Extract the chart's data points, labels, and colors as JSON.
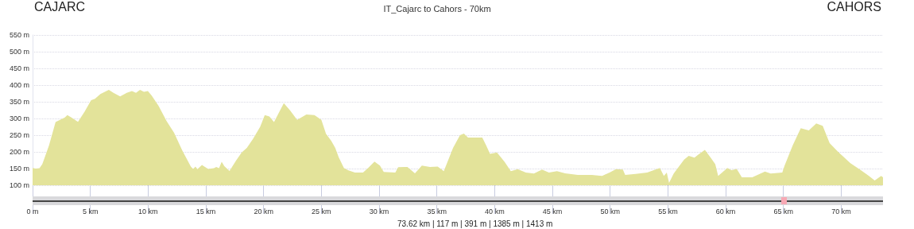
{
  "chart_data": {
    "type": "area",
    "title": "IT_Cajarc to Cahors - 70km",
    "annotations": [
      "CAJARC",
      "CAHORS",
      "73.62 km | 117 m | 391 m | 1385 m | 1413 m"
    ],
    "color": "#e3e39a",
    "x": [
      0,
      0.27,
      0.6,
      0.84,
      1.42,
      1.99,
      2.44,
      2.79,
      3.01,
      3.36,
      3.93,
      4.5,
      5.07,
      5.4,
      5.87,
      6.6,
      7.0,
      7.58,
      8.15,
      8.6,
      8.95,
      9.3,
      9.64,
      9.98,
      10.3,
      10.9,
      11.6,
      12.25,
      12.95,
      13.7,
      13.9,
      14.1,
      14.27,
      14.66,
      15.2,
      15.7,
      15.9,
      16.14,
      16.37,
      16.6,
      17.05,
      17.6,
      18.1,
      18.55,
      19.1,
      19.7,
      20.1,
      20.5,
      20.9,
      21.75,
      22.3,
      22.9,
      23.7,
      24.4,
      25,
      25.4,
      25.86,
      26.2,
      26.5,
      26.95,
      27.3,
      27.9,
      28.6,
      29.05,
      29.6,
      30.07,
      30.4,
      31.4,
      31.65,
      32.45,
      33.1,
      33.7,
      34.4,
      35.07,
      35.6,
      36.4,
      37,
      37.34,
      37.7,
      38.36,
      38.93,
      39.27,
      39.6,
      40.2,
      40.86,
      41.4,
      42,
      42.7,
      43.4,
      44.1,
      44.7,
      45.4,
      46.1,
      47.2,
      48.4,
      49.3,
      49.95,
      50.5,
      51.1,
      51.3,
      52.2,
      53.2,
      54.3,
      54.65,
      54.9,
      55.1,
      55.5,
      56.4,
      56.8,
      57.3,
      57.6,
      58.2,
      58.7,
      59.1,
      59.35,
      60.15,
      60.5,
      60.96,
      61.4,
      62.3,
      63.4,
      63.9,
      64.9,
      65.1,
      65.8,
      66.5,
      67.2,
      67.84,
      68.4,
      69,
      69.7,
      70.8,
      71.7,
      72.4,
      72.9,
      73.46,
      73.62
    ],
    "values": [
      152,
      150,
      151,
      163,
      219,
      289,
      297,
      303,
      310,
      303,
      290,
      320,
      355,
      359,
      373,
      386,
      377,
      366,
      377,
      382,
      377,
      386,
      380,
      382,
      369,
      338,
      292,
      257,
      205,
      156,
      149,
      156,
      148,
      161,
      149,
      151,
      155,
      151,
      170,
      157,
      143,
      173,
      198,
      212,
      240,
      275,
      310,
      306,
      289,
      346,
      324,
      296,
      312,
      310,
      296,
      254,
      233,
      212,
      184,
      152,
      145,
      138,
      138,
      152,
      171,
      159,
      140,
      138,
      154,
      155,
      136,
      159,
      155,
      156,
      142,
      212,
      250,
      255,
      243,
      243,
      243,
      219,
      194,
      198,
      170,
      142,
      148,
      138,
      135,
      147,
      138,
      142,
      136,
      131,
      131,
      128,
      138,
      148,
      147,
      131,
      134,
      138,
      152,
      128,
      138,
      107,
      135,
      177,
      188,
      183,
      191,
      206,
      183,
      163,
      128,
      152,
      145,
      149,
      124,
      124,
      141,
      135,
      138,
      159,
      219,
      271,
      264,
      285,
      278,
      226,
      201,
      166,
      145,
      128,
      114,
      128,
      124
    ],
    "xlim": [
      0,
      73.62
    ],
    "xticks": [
      {
        "value": 0,
        "label": "0 m"
      },
      {
        "value": 5,
        "label": "5 km"
      },
      {
        "value": 10,
        "label": "10 km"
      },
      {
        "value": 15,
        "label": "15 km"
      },
      {
        "value": 20,
        "label": "20 km"
      },
      {
        "value": 25,
        "label": "25 km"
      },
      {
        "value": 30,
        "label": "30 km"
      },
      {
        "value": 35,
        "label": "35 km"
      },
      {
        "value": 40,
        "label": "40 km"
      },
      {
        "value": 45,
        "label": "45 km"
      },
      {
        "value": 50,
        "label": "50 km"
      },
      {
        "value": 55,
        "label": "55 km"
      },
      {
        "value": 60,
        "label": "60 km"
      },
      {
        "value": 65,
        "label": "65 km"
      },
      {
        "value": 70,
        "label": "70 km"
      }
    ],
    "ylim": [
      100,
      550
    ],
    "yticks": [
      {
        "value": 100,
        "label": "100 m"
      },
      {
        "value": 150,
        "label": "150 m"
      },
      {
        "value": 200,
        "label": "200 m"
      },
      {
        "value": 250,
        "label": "250 m"
      },
      {
        "value": 300,
        "label": "300 m"
      },
      {
        "value": 350,
        "label": "350 m"
      },
      {
        "value": 400,
        "label": "400 m"
      },
      {
        "value": 450,
        "label": "450 m"
      },
      {
        "value": 500,
        "label": "500 m"
      },
      {
        "value": 550,
        "label": "550 m"
      }
    ],
    "grid": "y"
  }
}
